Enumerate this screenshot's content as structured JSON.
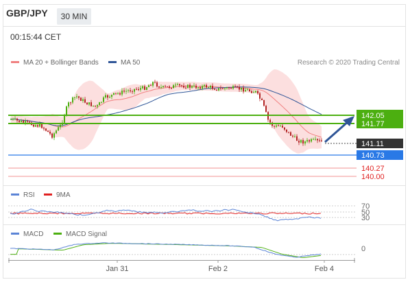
{
  "header": {
    "pair": "GBP/JPY",
    "timeframe": "30 MIN"
  },
  "time": "00:15:44 CET",
  "legend_main": [
    {
      "label": "MA 20 + Bollinger Bands",
      "color": "#f08080"
    },
    {
      "label": "MA 50",
      "color": "#2f5597"
    }
  ],
  "research": "Research © 2020 Trading Central",
  "price_labels": [
    {
      "value": "142.05",
      "bg": "#4caf10",
      "fg": "#ffffff"
    },
    {
      "value": "141.77",
      "bg": "#4caf10",
      "fg": "#ffffff"
    },
    {
      "value": "141.11",
      "bg": "#333333",
      "fg": "#ffffff"
    },
    {
      "value": "140.73",
      "bg": "#2979e6",
      "fg": "#ffffff"
    },
    {
      "value": "140.27",
      "bg": "",
      "fg": "#e02020"
    },
    {
      "value": "140.00",
      "bg": "",
      "fg": "#e02020"
    }
  ],
  "rsi": {
    "legend": [
      {
        "label": "RSI",
        "color": "#5b84d6"
      },
      {
        "label": "9MA",
        "color": "#e02020"
      }
    ],
    "levels": [
      "70",
      "50",
      "30"
    ]
  },
  "macd": {
    "legend": [
      {
        "label": "MACD",
        "color": "#5b84d6"
      },
      {
        "label": "MACD Signal",
        "color": "#4caf10"
      }
    ],
    "levels": [
      "0"
    ]
  },
  "x_axis": [
    "Jan 31",
    "Feb 2",
    "Feb 4"
  ],
  "colors": {
    "up": "#4caf10",
    "down": "#b22222",
    "support": "#2979e6",
    "resistance": "#e02020"
  }
}
